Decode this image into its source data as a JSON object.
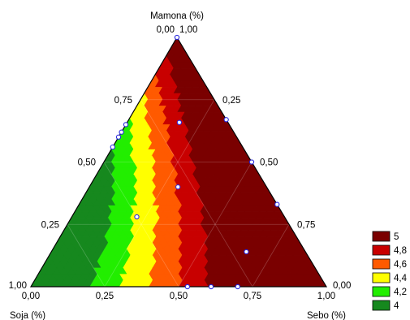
{
  "chart_data": {
    "type": "ternary contour",
    "axes": {
      "top": "Mamona (%)",
      "left": "Soja (%)",
      "right": "Sebo (%)"
    },
    "ticks": [
      "0,00",
      "0,25",
      "0,50",
      "0,75",
      "1,00"
    ],
    "legend": {
      "placement": "right",
      "levels": [
        {
          "label": "5",
          "value": 5.0,
          "color": "#7a0000"
        },
        {
          "label": "4,8",
          "value": 4.8,
          "color": "#c80000"
        },
        {
          "label": "4,6",
          "value": 4.6,
          "color": "#ff5a00"
        },
        {
          "label": "4,4",
          "value": 4.4,
          "color": "#ffff00"
        },
        {
          "label": "4,2",
          "value": 4.2,
          "color": "#22ee00"
        },
        {
          "label": "4",
          "value": 4.0,
          "color": "#16881e"
        }
      ]
    },
    "points": [
      {
        "mamona": 1.0,
        "sebo": 0.0,
        "soja": 0.0
      },
      {
        "mamona": 0.67,
        "sebo": 0.33,
        "soja": 0.0
      },
      {
        "mamona": 0.5,
        "sebo": 0.5,
        "soja": 0.0
      },
      {
        "mamona": 0.33,
        "sebo": 0.67,
        "soja": 0.0
      },
      {
        "mamona": 0.65,
        "sebo": 0.0,
        "soja": 0.35
      },
      {
        "mamona": 0.62,
        "sebo": 0.0,
        "soja": 0.38
      },
      {
        "mamona": 0.6,
        "sebo": 0.0,
        "soja": 0.4
      },
      {
        "mamona": 0.56,
        "sebo": 0.0,
        "soja": 0.44
      },
      {
        "mamona": 0.0,
        "sebo": 0.53,
        "soja": 0.47
      },
      {
        "mamona": 0.0,
        "sebo": 0.61,
        "soja": 0.39
      },
      {
        "mamona": 0.0,
        "sebo": 0.7,
        "soja": 0.3
      },
      {
        "mamona": 0.67,
        "sebo": 0.17,
        "soja": 0.17
      },
      {
        "mamona": 0.4,
        "sebo": 0.3,
        "soja": 0.3
      },
      {
        "mamona": 0.28,
        "sebo": 0.22,
        "soja": 0.5
      },
      {
        "mamona": 0.14,
        "sebo": 0.66,
        "soja": 0.2
      }
    ]
  }
}
